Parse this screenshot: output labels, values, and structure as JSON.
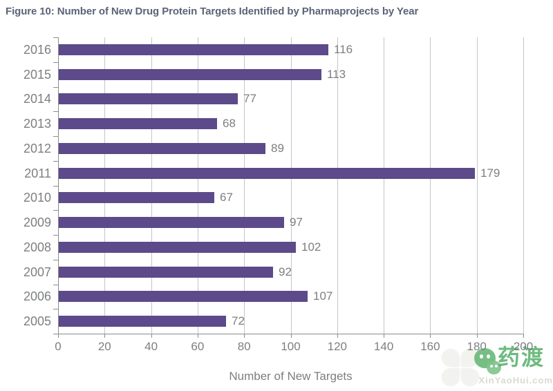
{
  "figure": {
    "title": "Figure 10: Number of New Drug Protein Targets Identified by Pharmaprojects by Year"
  },
  "chart_data": {
    "type": "bar",
    "orientation": "horizontal",
    "title": "Figure 10: Number of New Drug Protein Targets Identified by Pharmaprojects by Year",
    "categories": [
      "2016",
      "2015",
      "2014",
      "2013",
      "2012",
      "2011",
      "2010",
      "2009",
      "2008",
      "2007",
      "2006",
      "2005"
    ],
    "values": [
      116,
      113,
      77,
      68,
      89,
      179,
      67,
      97,
      102,
      92,
      107,
      72
    ],
    "xlabel": "Number of New Targets",
    "ylabel": "",
    "xlim": [
      0,
      200
    ],
    "xticks": [
      0,
      20,
      40,
      60,
      80,
      100,
      120,
      140,
      160,
      180,
      200
    ],
    "grid": true,
    "legend": "none",
    "data_labels": true
  },
  "colors": {
    "bar": "#5C4A8A",
    "title_text": "#5A6477",
    "axis_text": "#7C7E81",
    "gridline": "#C4C5C7",
    "axis_line": "#8A8C8F",
    "watermark_green": "#4BA960",
    "watermark_gray": "#D9D7D0"
  },
  "watermark": {
    "icons": [
      "clover-icon",
      "wechat-bubble-icon"
    ],
    "brand_text": "药渡",
    "site_text": "XinYaoHui.com"
  }
}
